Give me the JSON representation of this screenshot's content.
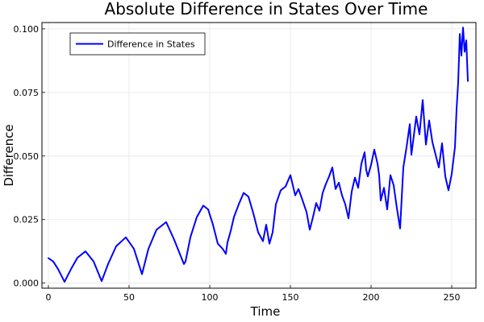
{
  "chart_data": {
    "type": "line",
    "title": "Absolute Difference in States Over Time",
    "xlabel": "Time",
    "ylabel": "Difference",
    "xlim": [
      -4,
      265
    ],
    "ylim": [
      -0.002,
      0.1025
    ],
    "xticks": [
      0,
      50,
      100,
      150,
      200,
      250
    ],
    "xtick_labels": [
      "0",
      "50",
      "100",
      "150",
      "200",
      "250"
    ],
    "yticks": [
      0.0,
      0.025,
      0.05,
      0.075,
      0.1
    ],
    "ytick_labels": [
      "0.000",
      "0.025",
      "0.050",
      "0.075",
      "0.100"
    ],
    "grid": true,
    "legend_position": "top-left",
    "series": [
      {
        "name": "Difference in States",
        "color": "#0000ff",
        "x": [
          0,
          3,
          6,
          10,
          14,
          18,
          23,
          28,
          33,
          37,
          42,
          48,
          53,
          58,
          62,
          67,
          73,
          78,
          84,
          85,
          88,
          92,
          96,
          99,
          102,
          105,
          108,
          110,
          111,
          113,
          115,
          118,
          121,
          124,
          127,
          130,
          133,
          135,
          137,
          139,
          141,
          144,
          147,
          150,
          153,
          155,
          157,
          160,
          162,
          164,
          166,
          168,
          170,
          172,
          174,
          176,
          178,
          180,
          182,
          184,
          186,
          188,
          190,
          192,
          194,
          196,
          197,
          198,
          200,
          202,
          204,
          205,
          206,
          208,
          210,
          212,
          214,
          216,
          218,
          220,
          222,
          224,
          225,
          226,
          228,
          230,
          232,
          234,
          236,
          238,
          240,
          242,
          244,
          246,
          248,
          250,
          252,
          253,
          254,
          255,
          256,
          257,
          258,
          259,
          260
        ],
        "y": [
          0.0098,
          0.0085,
          0.0055,
          0.0005,
          0.0055,
          0.01,
          0.0125,
          0.0085,
          0.0008,
          0.0075,
          0.0145,
          0.018,
          0.0135,
          0.0035,
          0.0135,
          0.021,
          0.024,
          0.017,
          0.0075,
          0.0085,
          0.018,
          0.026,
          0.0305,
          0.029,
          0.023,
          0.0155,
          0.0135,
          0.0115,
          0.016,
          0.0205,
          0.026,
          0.031,
          0.0355,
          0.034,
          0.0275,
          0.02,
          0.0165,
          0.023,
          0.0155,
          0.02,
          0.031,
          0.0365,
          0.038,
          0.0425,
          0.0345,
          0.037,
          0.0335,
          0.028,
          0.021,
          0.026,
          0.0315,
          0.0285,
          0.0355,
          0.039,
          0.042,
          0.0455,
          0.037,
          0.0395,
          0.0345,
          0.031,
          0.0255,
          0.036,
          0.0415,
          0.0375,
          0.047,
          0.0515,
          0.0445,
          0.042,
          0.0465,
          0.0525,
          0.047,
          0.0425,
          0.0325,
          0.0375,
          0.029,
          0.0425,
          0.0385,
          0.0295,
          0.0215,
          0.0455,
          0.0535,
          0.0625,
          0.0505,
          0.0555,
          0.0655,
          0.0585,
          0.072,
          0.0545,
          0.064,
          0.0555,
          0.0505,
          0.0455,
          0.055,
          0.042,
          0.0365,
          0.043,
          0.0535,
          0.0685,
          0.079,
          0.098,
          0.0895,
          0.1005,
          0.091,
          0.0955,
          0.0795
        ]
      }
    ]
  }
}
